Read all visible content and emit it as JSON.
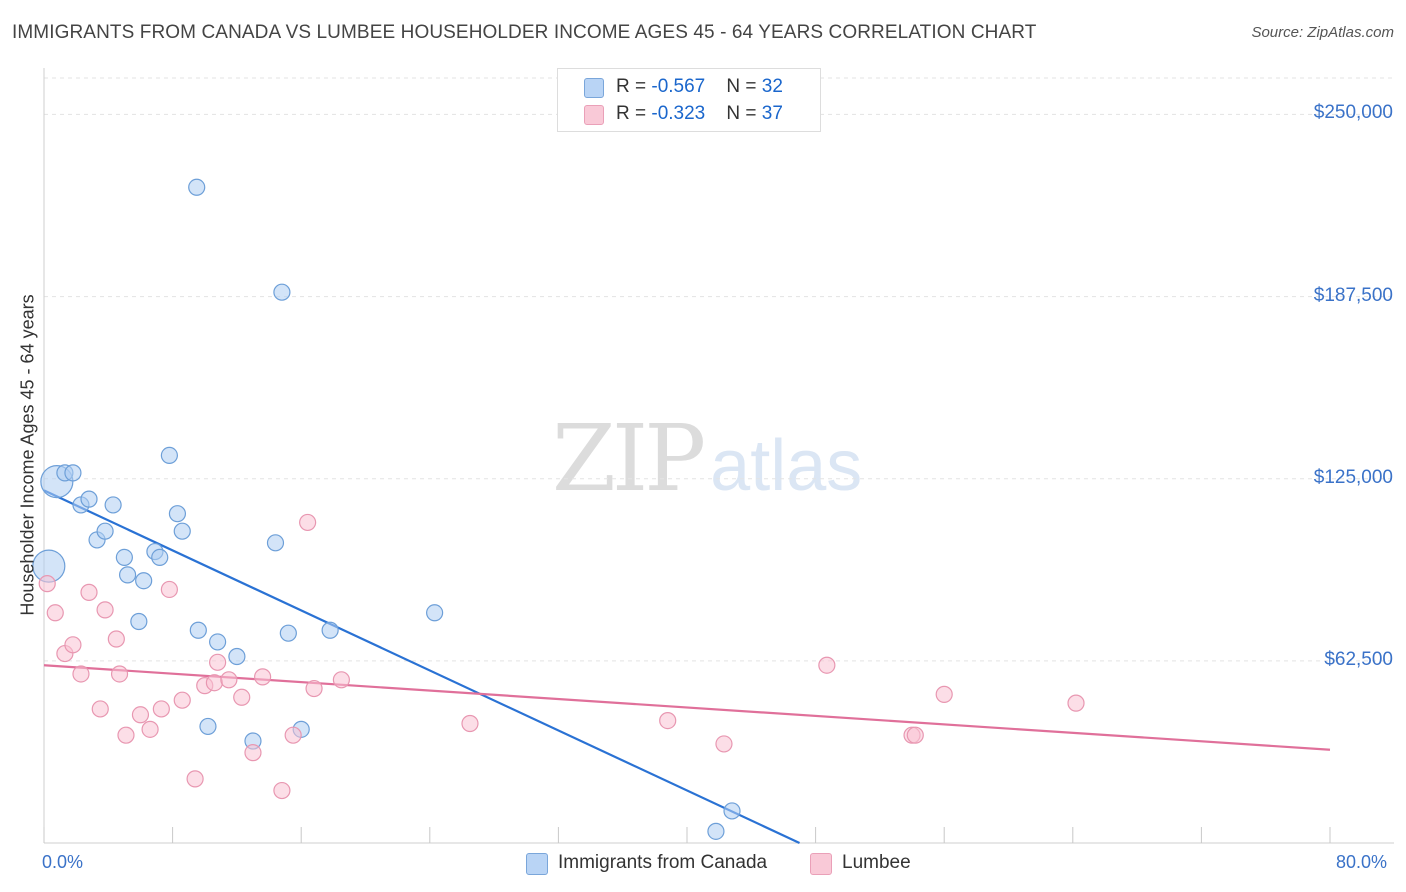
{
  "header": {
    "title": "IMMIGRANTS FROM CANADA VS LUMBEE HOUSEHOLDER INCOME AGES 45 - 64 YEARS CORRELATION CHART",
    "source": "Source: ZipAtlas.com"
  },
  "watermark": {
    "zip": "ZIP",
    "atlas": "atlas"
  },
  "legend": {
    "series1": {
      "r_label": "R = ",
      "r_value": "-0.567",
      "n_label": "N = ",
      "n_value": "32"
    },
    "series2": {
      "r_label": "R = ",
      "r_value": "-0.323",
      "n_label": "N = ",
      "n_value": "37"
    }
  },
  "chart_data": {
    "type": "scatter",
    "title": "IMMIGRANTS FROM CANADA VS LUMBEE HOUSEHOLDER INCOME AGES 45 - 64 YEARS CORRELATION CHART",
    "xlabel": "",
    "ylabel": "Householder Income Ages 45 - 64 years",
    "xlim": [
      0,
      80
    ],
    "ylim": [
      0,
      262500
    ],
    "x_tick_labels": {
      "min": "0.0%",
      "max": "80.0%"
    },
    "y_ticks": [
      62500,
      125000,
      187500,
      250000
    ],
    "y_tick_labels": [
      "$62,500",
      "$125,000",
      "$187,500",
      "$250,000"
    ],
    "grid": true,
    "legend_position": "top-center",
    "colors": {
      "series1_fill": "#aecdf3",
      "series1_stroke": "#6d9fd8",
      "series1_line": "#2a72d4",
      "series2_fill": "#f9c3d3",
      "series2_stroke": "#e897b1",
      "series2_line": "#e0709a",
      "value_text": "#1a66cc",
      "axis_label": "#3a72c8"
    },
    "series": [
      {
        "name": "Immigrants from Canada",
        "r": -0.567,
        "n": 32,
        "trend": {
          "x0": 0,
          "y0": 121000,
          "x1": 47,
          "y1": 0
        },
        "points": [
          {
            "x": 0.3,
            "y": 95000,
            "big": true
          },
          {
            "x": 0.8,
            "y": 124000,
            "big": true
          },
          {
            "x": 1.3,
            "y": 127000
          },
          {
            "x": 1.8,
            "y": 127000
          },
          {
            "x": 2.3,
            "y": 116000
          },
          {
            "x": 2.8,
            "y": 118000
          },
          {
            "x": 3.3,
            "y": 104000
          },
          {
            "x": 3.8,
            "y": 107000
          },
          {
            "x": 4.3,
            "y": 116000
          },
          {
            "x": 5.0,
            "y": 98000
          },
          {
            "x": 5.2,
            "y": 92000
          },
          {
            "x": 5.9,
            "y": 76000
          },
          {
            "x": 6.2,
            "y": 90000
          },
          {
            "x": 6.9,
            "y": 100000
          },
          {
            "x": 7.2,
            "y": 98000
          },
          {
            "x": 7.8,
            "y": 133000
          },
          {
            "x": 8.3,
            "y": 113000
          },
          {
            "x": 8.6,
            "y": 107000
          },
          {
            "x": 9.5,
            "y": 225000
          },
          {
            "x": 9.6,
            "y": 73000
          },
          {
            "x": 10.2,
            "y": 40000
          },
          {
            "x": 10.8,
            "y": 69000
          },
          {
            "x": 12.0,
            "y": 64000
          },
          {
            "x": 13.0,
            "y": 35000
          },
          {
            "x": 14.4,
            "y": 103000
          },
          {
            "x": 14.8,
            "y": 189000
          },
          {
            "x": 15.2,
            "y": 72000
          },
          {
            "x": 16.0,
            "y": 39000
          },
          {
            "x": 17.8,
            "y": 73000
          },
          {
            "x": 24.3,
            "y": 79000
          },
          {
            "x": 41.8,
            "y": 4000
          },
          {
            "x": 42.8,
            "y": 11000
          }
        ]
      },
      {
        "name": "Lumbee",
        "r": -0.323,
        "n": 37,
        "trend": {
          "x0": 0,
          "y0": 61000,
          "x1": 80,
          "y1": 32000
        },
        "points": [
          {
            "x": 0.2,
            "y": 89000
          },
          {
            "x": 0.7,
            "y": 79000
          },
          {
            "x": 1.3,
            "y": 65000
          },
          {
            "x": 1.8,
            "y": 68000
          },
          {
            "x": 2.3,
            "y": 58000
          },
          {
            "x": 2.8,
            "y": 86000
          },
          {
            "x": 3.5,
            "y": 46000
          },
          {
            "x": 3.8,
            "y": 80000
          },
          {
            "x": 4.5,
            "y": 70000
          },
          {
            "x": 4.7,
            "y": 58000
          },
          {
            "x": 5.1,
            "y": 37000
          },
          {
            "x": 6.0,
            "y": 44000
          },
          {
            "x": 6.6,
            "y": 39000
          },
          {
            "x": 7.3,
            "y": 46000
          },
          {
            "x": 7.8,
            "y": 87000
          },
          {
            "x": 8.6,
            "y": 49000
          },
          {
            "x": 9.4,
            "y": 22000
          },
          {
            "x": 10.0,
            "y": 54000
          },
          {
            "x": 10.6,
            "y": 55000
          },
          {
            "x": 10.8,
            "y": 62000
          },
          {
            "x": 11.5,
            "y": 56000
          },
          {
            "x": 12.3,
            "y": 50000
          },
          {
            "x": 13.0,
            "y": 31000
          },
          {
            "x": 13.6,
            "y": 57000
          },
          {
            "x": 14.8,
            "y": 18000
          },
          {
            "x": 15.5,
            "y": 37000
          },
          {
            "x": 16.4,
            "y": 110000
          },
          {
            "x": 16.8,
            "y": 53000
          },
          {
            "x": 18.5,
            "y": 56000
          },
          {
            "x": 26.5,
            "y": 41000
          },
          {
            "x": 38.8,
            "y": 42000
          },
          {
            "x": 42.3,
            "y": 34000
          },
          {
            "x": 48.7,
            "y": 61000
          },
          {
            "x": 54.0,
            "y": 37000
          },
          {
            "x": 54.2,
            "y": 37000
          },
          {
            "x": 56.0,
            "y": 51000
          },
          {
            "x": 64.2,
            "y": 48000
          }
        ]
      }
    ]
  },
  "bottom_legend": {
    "series1_label": "Immigrants from Canada",
    "series2_label": "Lumbee"
  }
}
